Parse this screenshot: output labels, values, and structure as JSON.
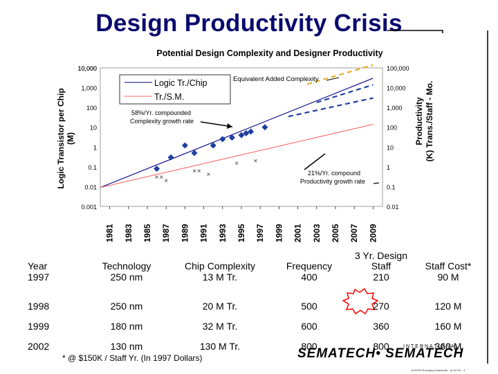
{
  "slide": {
    "title": "Design Productivity Crisis",
    "footnote": "* @ $150K / Staff Yr. (In 1997 Dollars)",
    "logo_top": "INTERNATIONAL",
    "logo": "SEMATECH• SEMATECH",
    "tiny_footer": "10/20/99 Emerging Standards · at UCSD · 4"
  },
  "chart_data": {
    "type": "line",
    "title": "Potential Design Complexity and Designer Productivity",
    "ylabel": "Logic Transistor per Chip (M)",
    "y2label": "Productivity (K) Trans./Staff - Mo.",
    "log_scale": true,
    "xlim": [
      1980,
      2010
    ],
    "ylim": [
      0.001,
      10000
    ],
    "y2lim": [
      0.01,
      100000
    ],
    "x_ticks": [
      "1981",
      "1983",
      "1985",
      "1987",
      "1989",
      "1991",
      "1993",
      "1995",
      "1997",
      "1999",
      "2001",
      "2003",
      "2005",
      "2007",
      "2009"
    ],
    "y_ticks": [
      "0.001",
      "0.01",
      "0.1",
      "1",
      "10",
      "100",
      "1,000",
      "10,000"
    ],
    "y2_ticks": [
      "0.01",
      "0.1",
      "1",
      "10",
      "100",
      "1,000",
      "10,000",
      "100,000"
    ],
    "legend": [
      "Logic Tr./Chip",
      "Tr./S.M."
    ],
    "series": [
      {
        "name": "Logic Tr./Chip",
        "color": "#000080",
        "x": [
          1980,
          2009
        ],
        "y": [
          0.009,
          3000
        ]
      },
      {
        "name": "Tr./S.M.",
        "color": "#ff6666",
        "x": [
          1980,
          2009
        ],
        "y": [
          0.009,
          14
        ]
      }
    ],
    "markers_diamond": {
      "color": "#1f3f9f",
      "x": [
        1986,
        1987.5,
        1989,
        1990,
        1992,
        1993,
        1994,
        1995,
        1995.5,
        1996,
        1997.5
      ],
      "y": [
        0.08,
        0.3,
        1.2,
        0.5,
        1.2,
        2.5,
        3,
        4,
        5,
        6,
        10
      ]
    },
    "markers_x": {
      "color": "#333333",
      "x": [
        1986,
        1986.5,
        1987,
        1990,
        1990.5,
        1991.5,
        1994.5,
        1996.5
      ],
      "y": [
        0.03,
        0.03,
        0.02,
        0.06,
        0.06,
        0.04,
        0.15,
        0.2
      ]
    },
    "dashed_projections": [
      {
        "color": "#1f3f9f",
        "x": [
          2000,
          2009
        ],
        "y": [
          35,
          300
        ]
      },
      {
        "color": "#1f3f9f",
        "x": [
          2003,
          2009
        ],
        "y": [
          180,
          1400
        ]
      },
      {
        "color": "#e8b020",
        "x": [
          2002,
          2009
        ],
        "y": [
          1500,
          14000
        ]
      }
    ],
    "annotations": [
      "Equivalent Added Complexity",
      "58%/Yr. compounded Complexity growth rate",
      "21%/Yr. compound Productivity growth rate"
    ]
  },
  "table": {
    "headers": [
      "Year",
      "Technology",
      "Chip Complexity",
      "Frequency",
      "3 Yr. Design Staff",
      "Staff Cost*"
    ],
    "rows": [
      [
        "1997",
        "250 nm",
        "13 M Tr.",
        "400",
        "210",
        "90 M"
      ],
      [
        "1998",
        "250 nm",
        "20 M Tr.",
        "500",
        "270",
        "120 M"
      ],
      [
        "1999",
        "180 nm",
        "32 M Tr.",
        "600",
        "360",
        "160 M"
      ],
      [
        "2002",
        "130 nm",
        "130 M Tr.",
        "800",
        "800",
        "360 M"
      ]
    ]
  }
}
